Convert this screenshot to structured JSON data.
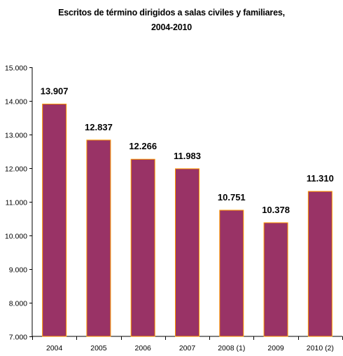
{
  "chart_data": {
    "type": "bar",
    "title_line1": "Escritos de término dirigidos a salas civiles y familiares,",
    "title_line2": "2004-2010",
    "xlabel": "",
    "ylabel": "",
    "categories": [
      "2004",
      "2005",
      "2006",
      "2007",
      "2008 (1)",
      "2009",
      "2010 (2)"
    ],
    "values": [
      13907,
      12837,
      12266,
      11983,
      10751,
      10378,
      11310
    ],
    "value_labels": [
      "13.907",
      "12.837",
      "12.266",
      "11.983",
      "10.751",
      "10.378",
      "11.310"
    ],
    "ylim": [
      7000,
      15000
    ],
    "yticks": [
      7000,
      8000,
      9000,
      10000,
      11000,
      12000,
      13000,
      14000,
      15000
    ],
    "ytick_labels": [
      "7.000",
      "8.000",
      "9.000",
      "10.000",
      "11.000",
      "12.000",
      "13.000",
      "14.000",
      "15.000"
    ],
    "grid": false,
    "legend": "none",
    "colors": {
      "bar_fill": "#993366",
      "bar_edge": "#ff9900",
      "axis": "#000000"
    }
  }
}
